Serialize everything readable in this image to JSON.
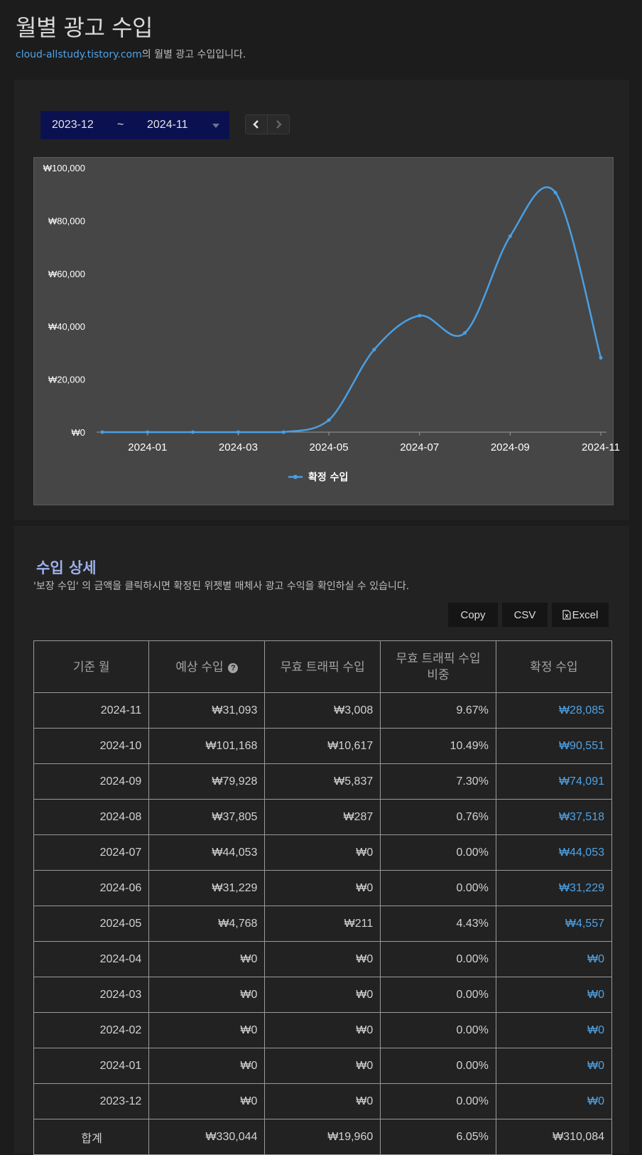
{
  "header": {
    "title": "월별 광고 수입",
    "site_link": "cloud-allstudy.tistory.com",
    "subtitle_suffix": "의 월별 광고 수입입니다."
  },
  "range": {
    "start": "2023-12",
    "separator": "~",
    "end": "2024-11"
  },
  "chart_data": {
    "type": "line",
    "x": [
      "2023-12",
      "2024-01",
      "2024-02",
      "2024-03",
      "2024-04",
      "2024-05",
      "2024-06",
      "2024-07",
      "2024-08",
      "2024-09",
      "2024-10",
      "2024-11"
    ],
    "series": [
      {
        "name": "확정 수입",
        "values": [
          0,
          0,
          0,
          0,
          0,
          4557,
          31229,
          44053,
          37518,
          74091,
          90551,
          28085
        ]
      }
    ],
    "x_tick_labels": [
      "2024-01",
      "2024-03",
      "2024-05",
      "2024-07",
      "2024-09",
      "2024-11"
    ],
    "y_tick_labels": [
      "₩0",
      "₩20,000",
      "₩40,000",
      "₩60,000",
      "₩80,000",
      "₩100,000"
    ],
    "ylim": [
      0,
      100000
    ],
    "legend_position": "bottom",
    "colors": {
      "line": "#4a9fe3",
      "background": "#464646"
    }
  },
  "details": {
    "title": "수입 상세",
    "description": "'보장 수입' 의 금액을 클릭하시면 확정된 위젯별 매체사 광고 수익을 확인하실 수 있습니다.",
    "buttons": {
      "copy": "Copy",
      "csv": "CSV",
      "excel": "Excel"
    }
  },
  "table": {
    "headers": {
      "month": "기준 월",
      "expected": "예상 수입",
      "invalid": "무효 트래픽 수입",
      "ratio_line1": "무효 트래픽 수입",
      "ratio_line2": "비중",
      "confirmed": "확정 수입"
    },
    "rows": [
      {
        "month": "2024-11",
        "expected": "₩31,093",
        "invalid": "₩3,008",
        "ratio": "9.67%",
        "confirmed": "₩28,085"
      },
      {
        "month": "2024-10",
        "expected": "₩101,168",
        "invalid": "₩10,617",
        "ratio": "10.49%",
        "confirmed": "₩90,551"
      },
      {
        "month": "2024-09",
        "expected": "₩79,928",
        "invalid": "₩5,837",
        "ratio": "7.30%",
        "confirmed": "₩74,091"
      },
      {
        "month": "2024-08",
        "expected": "₩37,805",
        "invalid": "₩287",
        "ratio": "0.76%",
        "confirmed": "₩37,518"
      },
      {
        "month": "2024-07",
        "expected": "₩44,053",
        "invalid": "₩0",
        "ratio": "0.00%",
        "confirmed": "₩44,053"
      },
      {
        "month": "2024-06",
        "expected": "₩31,229",
        "invalid": "₩0",
        "ratio": "0.00%",
        "confirmed": "₩31,229"
      },
      {
        "month": "2024-05",
        "expected": "₩4,768",
        "invalid": "₩211",
        "ratio": "4.43%",
        "confirmed": "₩4,557"
      },
      {
        "month": "2024-04",
        "expected": "₩0",
        "invalid": "₩0",
        "ratio": "0.00%",
        "confirmed": "₩0"
      },
      {
        "month": "2024-03",
        "expected": "₩0",
        "invalid": "₩0",
        "ratio": "0.00%",
        "confirmed": "₩0"
      },
      {
        "month": "2024-02",
        "expected": "₩0",
        "invalid": "₩0",
        "ratio": "0.00%",
        "confirmed": "₩0"
      },
      {
        "month": "2024-01",
        "expected": "₩0",
        "invalid": "₩0",
        "ratio": "0.00%",
        "confirmed": "₩0"
      },
      {
        "month": "2023-12",
        "expected": "₩0",
        "invalid": "₩0",
        "ratio": "0.00%",
        "confirmed": "₩0"
      }
    ],
    "total": {
      "label": "합계",
      "expected": "₩330,044",
      "invalid": "₩19,960",
      "ratio": "6.05%",
      "confirmed": "₩310,084"
    }
  }
}
